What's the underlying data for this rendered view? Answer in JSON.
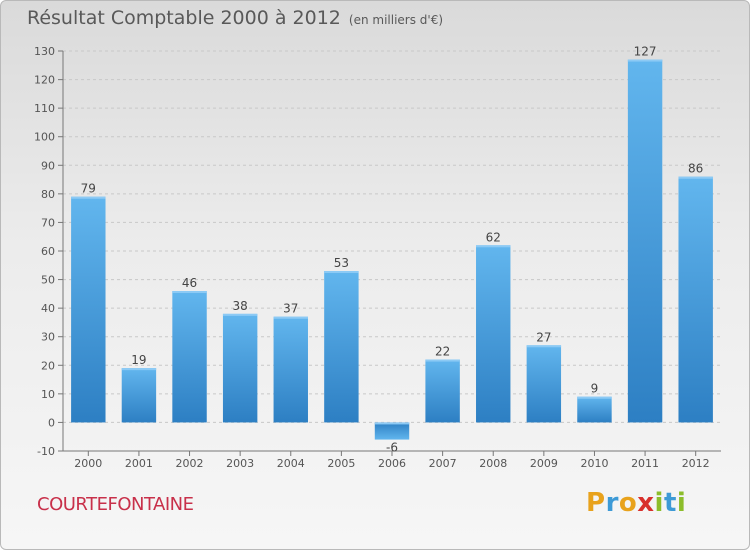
{
  "title": "Résultat Comptable 2000 à 2012",
  "title_unit": "(en milliers d'€)",
  "commune": "COURTEFONTAINE",
  "logo": {
    "letters": [
      "P",
      "r",
      "o",
      "x",
      "i",
      "t",
      "i"
    ],
    "colors": [
      "#e8a21c",
      "#3d9ad6",
      "#e8a21c",
      "#d8302c",
      "#8cbd2a",
      "#3d9ad6",
      "#8cbd2a"
    ]
  },
  "colors": {
    "bar": "#3d97dc",
    "bar_light": "#62b6ee",
    "text": "#595959",
    "commune": "#c8304a"
  },
  "chart_data": {
    "type": "bar",
    "categories": [
      "2000",
      "2001",
      "2002",
      "2003",
      "2004",
      "2005",
      "2006",
      "2007",
      "2008",
      "2009",
      "2010",
      "2011",
      "2012"
    ],
    "values": [
      79,
      19,
      46,
      38,
      37,
      53,
      -6,
      22,
      62,
      27,
      9,
      127,
      86
    ],
    "ylim": [
      -10,
      130
    ],
    "yticks": [
      -10,
      0,
      10,
      20,
      30,
      40,
      50,
      60,
      70,
      80,
      90,
      100,
      110,
      120,
      130
    ],
    "grid": true
  }
}
